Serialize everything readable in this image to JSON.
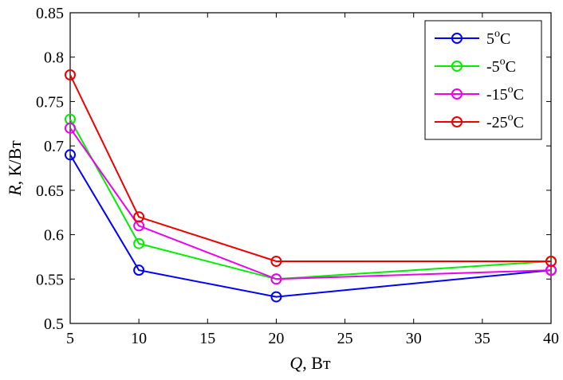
{
  "chart_data": {
    "type": "line",
    "title": "",
    "xlabel_symbol": "Q",
    "xlabel_unit": ", Вт",
    "ylabel_symbol": "R",
    "ylabel_unit": ", К/Вт",
    "x": [
      5,
      10,
      20,
      40
    ],
    "xlim": [
      5,
      40
    ],
    "ylim": [
      0.5,
      0.85
    ],
    "xticks": [
      "5",
      "10",
      "15",
      "20",
      "25",
      "30",
      "35",
      "40"
    ],
    "xtick_values": [
      5,
      10,
      15,
      20,
      25,
      30,
      35,
      40
    ],
    "yticks": [
      "0.5",
      "0.55",
      "0.6",
      "0.65",
      "0.7",
      "0.75",
      "0.8",
      "0.85"
    ],
    "ytick_values": [
      0.5,
      0.55,
      0.6,
      0.65,
      0.7,
      0.75,
      0.8,
      0.85
    ],
    "grid": false,
    "legend_position": "top-right",
    "series": [
      {
        "name": "5°C",
        "label_main": "5",
        "label_sup": "o",
        "label_tail": "C",
        "color": "#0000ff",
        "values": [
          0.69,
          0.56,
          0.53,
          0.56
        ]
      },
      {
        "name": "-5°C",
        "label_main": "-5",
        "label_sup": "o",
        "label_tail": "C",
        "color": "#00ee00",
        "values": [
          0.73,
          0.59,
          0.55,
          0.57
        ]
      },
      {
        "name": "-15°C",
        "label_main": "-15",
        "label_sup": "o",
        "label_tail": "C",
        "color": "#ee00ee",
        "values": [
          0.72,
          0.61,
          0.55,
          0.56
        ]
      },
      {
        "name": "-25°C",
        "label_main": "-25",
        "label_sup": "o",
        "label_tail": "C",
        "color": "#ee0000",
        "values": [
          0.78,
          0.62,
          0.57,
          0.57
        ]
      }
    ]
  }
}
